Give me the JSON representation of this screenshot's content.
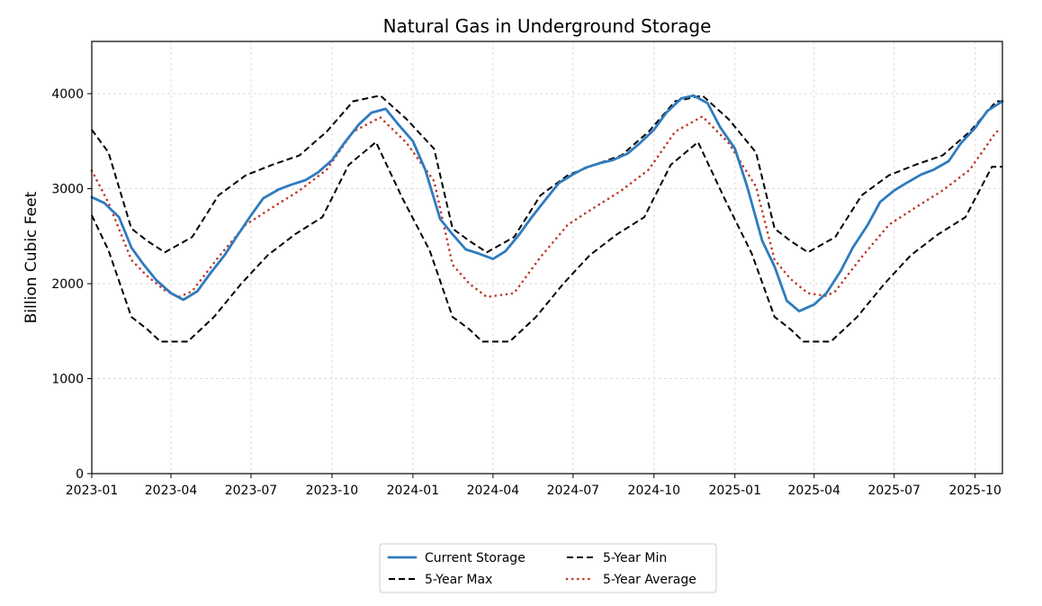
{
  "chart_data": {
    "type": "line",
    "title": "Natural Gas in Underground Storage",
    "xlabel": "",
    "ylabel": "Billion Cubic Feet",
    "xlim": [
      "2023-01-01",
      "2025-11-01"
    ],
    "ylim": [
      0,
      4550
    ],
    "x_ticks": [
      "2023-01",
      "2023-04",
      "2023-07",
      "2023-10",
      "2024-01",
      "2024-04",
      "2024-07",
      "2024-10",
      "2025-01",
      "2025-04",
      "2025-07",
      "2025-10"
    ],
    "y_ticks": [
      0,
      1000,
      2000,
      3000,
      4000
    ],
    "grid": true,
    "legend_position": "bottom-center",
    "series": [
      {
        "name": "Current Storage",
        "color": "#2f7bbf",
        "style": "solid",
        "points": [
          [
            "2023-01-01",
            2910
          ],
          [
            "2023-01-15",
            2850
          ],
          [
            "2023-02-01",
            2700
          ],
          [
            "2023-02-15",
            2380
          ],
          [
            "2023-03-01",
            2200
          ],
          [
            "2023-03-15",
            2040
          ],
          [
            "2023-04-01",
            1900
          ],
          [
            "2023-04-15",
            1830
          ],
          [
            "2023-05-01",
            1920
          ],
          [
            "2023-05-15",
            2100
          ],
          [
            "2023-06-01",
            2300
          ],
          [
            "2023-06-15",
            2500
          ],
          [
            "2023-07-01",
            2720
          ],
          [
            "2023-07-15",
            2900
          ],
          [
            "2023-08-01",
            2990
          ],
          [
            "2023-08-15",
            3040
          ],
          [
            "2023-09-01",
            3090
          ],
          [
            "2023-09-15",
            3170
          ],
          [
            "2023-10-01",
            3300
          ],
          [
            "2023-10-15",
            3480
          ],
          [
            "2023-11-01",
            3680
          ],
          [
            "2023-11-15",
            3800
          ],
          [
            "2023-12-01",
            3840
          ],
          [
            "2023-12-15",
            3680
          ],
          [
            "2024-01-01",
            3500
          ],
          [
            "2024-01-15",
            3200
          ],
          [
            "2024-02-01",
            2680
          ],
          [
            "2024-02-15",
            2520
          ],
          [
            "2024-03-01",
            2360
          ],
          [
            "2024-03-15",
            2320
          ],
          [
            "2024-04-01",
            2260
          ],
          [
            "2024-04-15",
            2340
          ],
          [
            "2024-05-01",
            2520
          ],
          [
            "2024-05-15",
            2700
          ],
          [
            "2024-06-01",
            2900
          ],
          [
            "2024-06-15",
            3060
          ],
          [
            "2024-07-01",
            3150
          ],
          [
            "2024-07-15",
            3220
          ],
          [
            "2024-08-01",
            3270
          ],
          [
            "2024-08-15",
            3300
          ],
          [
            "2024-09-01",
            3370
          ],
          [
            "2024-09-15",
            3480
          ],
          [
            "2024-10-01",
            3620
          ],
          [
            "2024-10-15",
            3800
          ],
          [
            "2024-11-01",
            3950
          ],
          [
            "2024-11-15",
            3980
          ],
          [
            "2024-12-01",
            3900
          ],
          [
            "2024-12-15",
            3650
          ],
          [
            "2025-01-01",
            3420
          ],
          [
            "2025-01-15",
            3020
          ],
          [
            "2025-02-01",
            2450
          ],
          [
            "2025-02-15",
            2180
          ],
          [
            "2025-03-01",
            1820
          ],
          [
            "2025-03-15",
            1710
          ],
          [
            "2025-04-01",
            1780
          ],
          [
            "2025-04-15",
            1900
          ],
          [
            "2025-05-01",
            2130
          ],
          [
            "2025-05-15",
            2380
          ],
          [
            "2025-06-01",
            2620
          ],
          [
            "2025-06-15",
            2860
          ],
          [
            "2025-07-01",
            2980
          ],
          [
            "2025-07-15",
            3060
          ],
          [
            "2025-08-01",
            3150
          ],
          [
            "2025-08-15",
            3200
          ],
          [
            "2025-09-01",
            3290
          ],
          [
            "2025-09-15",
            3480
          ],
          [
            "2025-10-01",
            3640
          ],
          [
            "2025-10-15",
            3820
          ],
          [
            "2025-11-01",
            3920
          ]
        ]
      },
      {
        "name": "5-Year Max",
        "color": "#000000",
        "style": "dashed",
        "points": [
          [
            "2023-01-01",
            3620
          ],
          [
            "2023-01-20",
            3380
          ],
          [
            "2023-02-15",
            2580
          ],
          [
            "2023-03-05",
            2450
          ],
          [
            "2023-03-25",
            2330
          ],
          [
            "2023-04-25",
            2490
          ],
          [
            "2023-05-25",
            2930
          ],
          [
            "2023-06-25",
            3140
          ],
          [
            "2023-07-25",
            3250
          ],
          [
            "2023-08-25",
            3350
          ],
          [
            "2023-09-25",
            3600
          ],
          [
            "2023-10-25",
            3920
          ],
          [
            "2023-11-25",
            3980
          ],
          [
            "2023-12-25",
            3730
          ],
          [
            "2024-01-25",
            3420
          ],
          [
            "2024-02-15",
            2580
          ],
          [
            "2024-03-05",
            2450
          ],
          [
            "2024-03-25",
            2330
          ],
          [
            "2024-04-25",
            2490
          ],
          [
            "2024-05-25",
            2930
          ],
          [
            "2024-06-25",
            3140
          ],
          [
            "2024-07-25",
            3250
          ],
          [
            "2024-08-25",
            3350
          ],
          [
            "2024-09-25",
            3600
          ],
          [
            "2024-10-25",
            3920
          ],
          [
            "2024-11-25",
            3980
          ],
          [
            "2024-12-25",
            3730
          ],
          [
            "2025-01-25",
            3380
          ],
          [
            "2025-02-15",
            2580
          ],
          [
            "2025-03-05",
            2450
          ],
          [
            "2025-03-25",
            2330
          ],
          [
            "2025-04-25",
            2490
          ],
          [
            "2025-05-25",
            2930
          ],
          [
            "2025-06-25",
            3140
          ],
          [
            "2025-07-25",
            3250
          ],
          [
            "2025-08-25",
            3350
          ],
          [
            "2025-09-25",
            3600
          ],
          [
            "2025-10-25",
            3920
          ],
          [
            "2025-11-01",
            3920
          ]
        ]
      },
      {
        "name": "5-Year Min",
        "color": "#000000",
        "style": "dashed",
        "points": [
          [
            "2023-01-01",
            2720
          ],
          [
            "2023-01-20",
            2350
          ],
          [
            "2023-02-15",
            1650
          ],
          [
            "2023-03-05",
            1520
          ],
          [
            "2023-03-20",
            1390
          ],
          [
            "2023-04-20",
            1390
          ],
          [
            "2023-05-20",
            1650
          ],
          [
            "2023-06-20",
            2000
          ],
          [
            "2023-07-20",
            2300
          ],
          [
            "2023-08-20",
            2520
          ],
          [
            "2023-09-20",
            2700
          ],
          [
            "2023-10-20",
            3250
          ],
          [
            "2023-11-20",
            3490
          ],
          [
            "2023-12-20",
            2900
          ],
          [
            "2024-01-20",
            2350
          ],
          [
            "2024-02-15",
            1650
          ],
          [
            "2024-03-05",
            1520
          ],
          [
            "2024-03-20",
            1390
          ],
          [
            "2024-04-20",
            1390
          ],
          [
            "2024-05-20",
            1650
          ],
          [
            "2024-06-20",
            2000
          ],
          [
            "2024-07-20",
            2300
          ],
          [
            "2024-08-20",
            2520
          ],
          [
            "2024-09-20",
            2700
          ],
          [
            "2024-10-20",
            3250
          ],
          [
            "2024-11-20",
            3490
          ],
          [
            "2024-12-20",
            2900
          ],
          [
            "2025-01-20",
            2320
          ],
          [
            "2025-02-15",
            1650
          ],
          [
            "2025-03-05",
            1520
          ],
          [
            "2025-03-20",
            1390
          ],
          [
            "2025-04-20",
            1390
          ],
          [
            "2025-05-20",
            1650
          ],
          [
            "2025-06-20",
            2000
          ],
          [
            "2025-07-20",
            2300
          ],
          [
            "2025-08-20",
            2520
          ],
          [
            "2025-09-20",
            2700
          ],
          [
            "2025-10-20",
            3230
          ],
          [
            "2025-11-01",
            3230
          ]
        ]
      },
      {
        "name": "5-Year Average",
        "color": "#c0392b",
        "style": "dotted",
        "points": [
          [
            "2023-01-01",
            3190
          ],
          [
            "2023-01-20",
            2850
          ],
          [
            "2023-02-15",
            2250
          ],
          [
            "2023-03-05",
            2080
          ],
          [
            "2023-03-25",
            1930
          ],
          [
            "2023-04-10",
            1860
          ],
          [
            "2023-04-25",
            1920
          ],
          [
            "2023-05-25",
            2280
          ],
          [
            "2023-06-25",
            2620
          ],
          [
            "2023-07-25",
            2800
          ],
          [
            "2023-08-25",
            2980
          ],
          [
            "2023-09-25",
            3200
          ],
          [
            "2023-10-25",
            3600
          ],
          [
            "2023-11-25",
            3750
          ],
          [
            "2023-12-25",
            3480
          ],
          [
            "2024-01-25",
            3080
          ],
          [
            "2024-02-15",
            2200
          ],
          [
            "2024-03-05",
            2000
          ],
          [
            "2024-03-25",
            1860
          ],
          [
            "2024-04-25",
            1900
          ],
          [
            "2024-05-25",
            2280
          ],
          [
            "2024-06-25",
            2620
          ],
          [
            "2024-07-25",
            2800
          ],
          [
            "2024-08-25",
            2980
          ],
          [
            "2024-09-25",
            3200
          ],
          [
            "2024-10-25",
            3600
          ],
          [
            "2024-11-25",
            3760
          ],
          [
            "2024-12-25",
            3480
          ],
          [
            "2025-01-25",
            3020
          ],
          [
            "2025-02-15",
            2250
          ],
          [
            "2025-03-05",
            2050
          ],
          [
            "2025-03-25",
            1900
          ],
          [
            "2025-04-15",
            1870
          ],
          [
            "2025-04-25",
            1920
          ],
          [
            "2025-05-25",
            2280
          ],
          [
            "2025-06-25",
            2620
          ],
          [
            "2025-07-25",
            2800
          ],
          [
            "2025-08-25",
            2980
          ],
          [
            "2025-09-25",
            3200
          ],
          [
            "2025-10-25",
            3600
          ],
          [
            "2025-11-01",
            3610
          ]
        ]
      }
    ],
    "legend": [
      {
        "label": "Current Storage",
        "series": 0
      },
      {
        "label": "5-Year Min",
        "series": 2
      },
      {
        "label": "5-Year Max",
        "series": 1
      },
      {
        "label": "5-Year Average",
        "series": 3
      }
    ]
  }
}
